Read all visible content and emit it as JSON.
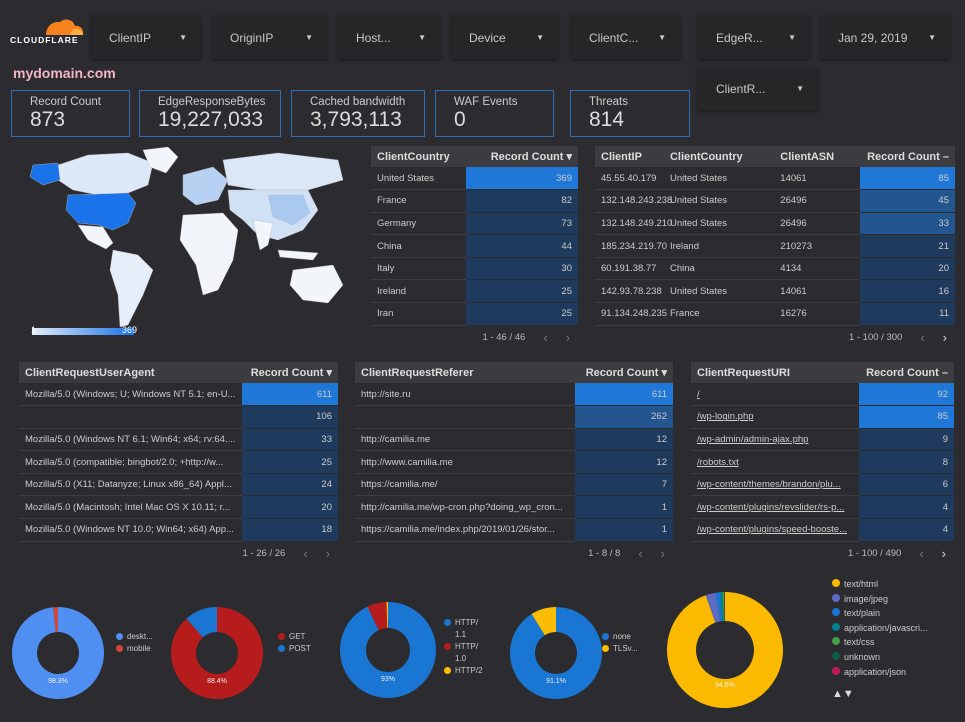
{
  "brand": {
    "logo_text": "CLOUDFLARE",
    "domain": "mydomain.com"
  },
  "filters": [
    {
      "label": "ClientIP"
    },
    {
      "label": "OriginIP"
    },
    {
      "label": "Host..."
    },
    {
      "label": "Device"
    },
    {
      "label": "ClientC..."
    },
    {
      "label": "EdgeR..."
    },
    {
      "label": "Jan 29, 2019"
    },
    {
      "label": "ClientR..."
    }
  ],
  "kpis": [
    {
      "label": "Record Count",
      "value": "873"
    },
    {
      "label": "EdgeResponseBytes",
      "value": "19,227,033"
    },
    {
      "label": "Cached bandwidth",
      "value": "3,793,113"
    },
    {
      "label": "WAF Events",
      "value": "0"
    },
    {
      "label": "Threats",
      "value": "814"
    }
  ],
  "map": {
    "scale_min": "1",
    "scale_max": "369",
    "colors": {
      "low": "#c6dcf5",
      "high": "#1a73e8"
    }
  },
  "tables": {
    "country": {
      "headers": [
        "ClientCountry",
        "Record Count ▾"
      ],
      "max": 369,
      "rows": [
        [
          "United States",
          369
        ],
        [
          "France",
          82
        ],
        [
          "Germany",
          73
        ],
        [
          "China",
          44
        ],
        [
          "Italy",
          30
        ],
        [
          "Ireland",
          25
        ],
        [
          "Iran",
          25
        ]
      ],
      "pager": "1 - 46 / 46"
    },
    "ip": {
      "headers": [
        "ClientIP",
        "ClientCountry",
        "ClientASN",
        "Record Count –"
      ],
      "max": 85,
      "rows": [
        [
          "45.55.40.179",
          "United States",
          "14061",
          85
        ],
        [
          "132.148.243.238",
          "United States",
          "26496",
          45
        ],
        [
          "132.148.249.210",
          "United States",
          "26496",
          33
        ],
        [
          "185.234.219.70",
          "Ireland",
          "210273",
          21
        ],
        [
          "60.191.38.77",
          "China",
          "4134",
          20
        ],
        [
          "142.93.78.238",
          "United States",
          "14061",
          16
        ],
        [
          "91.134.248.235",
          "France",
          "16276",
          11
        ]
      ],
      "pager": "1 - 100 / 300"
    },
    "ua": {
      "headers": [
        "ClientRequestUserAgent",
        "Record Count ▾"
      ],
      "max": 611,
      "rows": [
        [
          "Mozilla/5.0 (Windows; U; Windows NT 5.1; en-U...",
          611
        ],
        [
          "",
          106
        ],
        [
          "Mozilla/5.0 (Windows NT 6.1; Win64; x64; rv:64....",
          33
        ],
        [
          "Mozilla/5.0 (compatible; bingbot/2.0; +http://w...",
          25
        ],
        [
          "Mozilla/5.0 (X11; Datanyze; Linux x86_64) Appl...",
          24
        ],
        [
          "Mozilla/5.0 (Macintosh; Intel Mac OS X 10.11; r...",
          20
        ],
        [
          "Mozilla/5.0 (Windows NT 10.0; Win64; x64) App...",
          18
        ]
      ],
      "pager": "1 - 26 / 26"
    },
    "ref": {
      "headers": [
        "ClientRequestReferer",
        "Record Count ▾"
      ],
      "max": 611,
      "rows": [
        [
          "http://site.ru",
          611
        ],
        [
          "",
          262
        ],
        [
          "http://camilia.me",
          12
        ],
        [
          "http://www.camilia.me",
          12
        ],
        [
          "https://camilia.me/",
          7
        ],
        [
          "http://camilia.me/wp-cron.php?doing_wp_cron...",
          1
        ],
        [
          "https://camilia.me/index.php/2019/01/26/stor...",
          1
        ]
      ],
      "pager": "1 - 8 / 8"
    },
    "uri": {
      "headers": [
        "ClientRequestURI",
        "Record Count –"
      ],
      "max": 92,
      "rows": [
        [
          "/",
          92
        ],
        [
          "/wp-login.php",
          85
        ],
        [
          "/wp-admin/admin-ajax.php",
          9
        ],
        [
          "/robots.txt",
          8
        ],
        [
          "/wp-content/themes/brandon/plu...",
          6
        ],
        [
          "/wp-content/plugins/revslider/rs-p...",
          4
        ],
        [
          "/wp-content/plugins/speed-booste...",
          4
        ]
      ],
      "pager": "1 - 100 / 490"
    }
  },
  "donuts": [
    {
      "label": "98.3%",
      "slices": [
        {
          "name": "deskt...",
          "value": 98.3,
          "color": "#4f8ff2"
        },
        {
          "name": "mobile",
          "value": 1.7,
          "color": "#d0473d"
        }
      ]
    },
    {
      "label": "88.4%",
      "slices": [
        {
          "name": "GET",
          "value": 88.4,
          "color": "#b71c1c"
        },
        {
          "name": "POST",
          "value": 11.6,
          "color": "#1976d2"
        }
      ]
    },
    {
      "label": "93%",
      "slices": [
        {
          "name": "HTTP/ 1.1",
          "value": 93,
          "color": "#1976d2"
        },
        {
          "name": "HTTP/ 1.0",
          "value": 6.5,
          "color": "#b71c1c"
        },
        {
          "name": "HTTP/2",
          "value": 0.5,
          "color": "#fbbc04"
        }
      ]
    },
    {
      "label": "91.1%",
      "slices": [
        {
          "name": "none",
          "value": 91.1,
          "color": "#1976d2"
        },
        {
          "name": "TLSv...",
          "value": 8.9,
          "color": "#fbbc04"
        }
      ]
    },
    {
      "label": "94.6%",
      "slices": [
        {
          "name": "text/html",
          "value": 94.6,
          "color": "#fbb900"
        },
        {
          "name": "image/jpeg",
          "value": 2.8,
          "color": "#5c6bc0"
        },
        {
          "name": "text/plain",
          "value": 1.2,
          "color": "#1976d2"
        },
        {
          "name": "application/javascri...",
          "value": 0.7,
          "color": "#00838f"
        },
        {
          "name": "text/css",
          "value": 0.4,
          "color": "#43a047"
        },
        {
          "name": "unknown",
          "value": 0.2,
          "color": "#0b5e45"
        },
        {
          "name": "application/json",
          "value": 0.1,
          "color": "#c2185b"
        }
      ],
      "pager": "▲▼"
    }
  ]
}
